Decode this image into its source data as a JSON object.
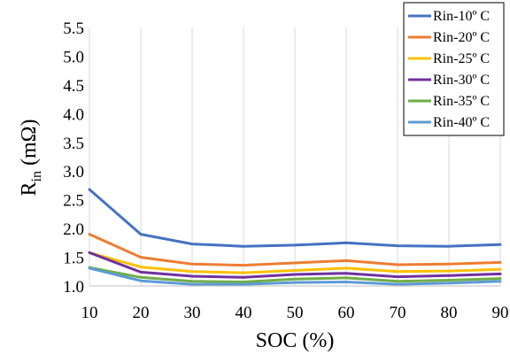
{
  "chart_data": {
    "type": "line",
    "x": [
      10,
      20,
      30,
      40,
      50,
      60,
      70,
      80,
      90
    ],
    "xlabel": "SOC (%)",
    "ylabel": {
      "main": "R",
      "sub": "in",
      "unit": " (mΩ)"
    },
    "xlim": [
      10,
      90
    ],
    "ylim": [
      1.0,
      5.5
    ],
    "x_ticks": [
      "10",
      "20",
      "30",
      "40",
      "50",
      "60",
      "70",
      "80",
      "90"
    ],
    "y_ticks": [
      "1.0",
      "1.5",
      "2.0",
      "2.5",
      "3.0",
      "3.5",
      "4.0",
      "4.5",
      "5.0",
      "5.5"
    ],
    "grid": "vertical",
    "legend_position": "top-right",
    "series": [
      {
        "name": "Rin-10º C",
        "color": "#4472c4",
        "values": [
          2.68,
          1.9,
          1.73,
          1.69,
          1.71,
          1.75,
          1.7,
          1.69,
          1.72
        ]
      },
      {
        "name": "Rin-20º C",
        "color": "#ed7d31",
        "values": [
          1.9,
          1.5,
          1.38,
          1.36,
          1.4,
          1.44,
          1.37,
          1.38,
          1.41
        ]
      },
      {
        "name": "Rin-25º C",
        "color": "#ffc000",
        "values": [
          1.58,
          1.33,
          1.25,
          1.23,
          1.27,
          1.31,
          1.25,
          1.26,
          1.29
        ]
      },
      {
        "name": "Rin-30º C",
        "color": "#7030a0",
        "values": [
          1.58,
          1.24,
          1.17,
          1.15,
          1.2,
          1.22,
          1.16,
          1.18,
          1.21
        ]
      },
      {
        "name": "Rin-35º C",
        "color": "#70ad47",
        "values": [
          1.32,
          1.15,
          1.08,
          1.07,
          1.12,
          1.14,
          1.08,
          1.1,
          1.13
        ]
      },
      {
        "name": "Rin-40º C",
        "color": "#5b9bd5",
        "values": [
          1.31,
          1.09,
          1.03,
          1.03,
          1.06,
          1.07,
          1.03,
          1.05,
          1.08
        ]
      }
    ]
  }
}
